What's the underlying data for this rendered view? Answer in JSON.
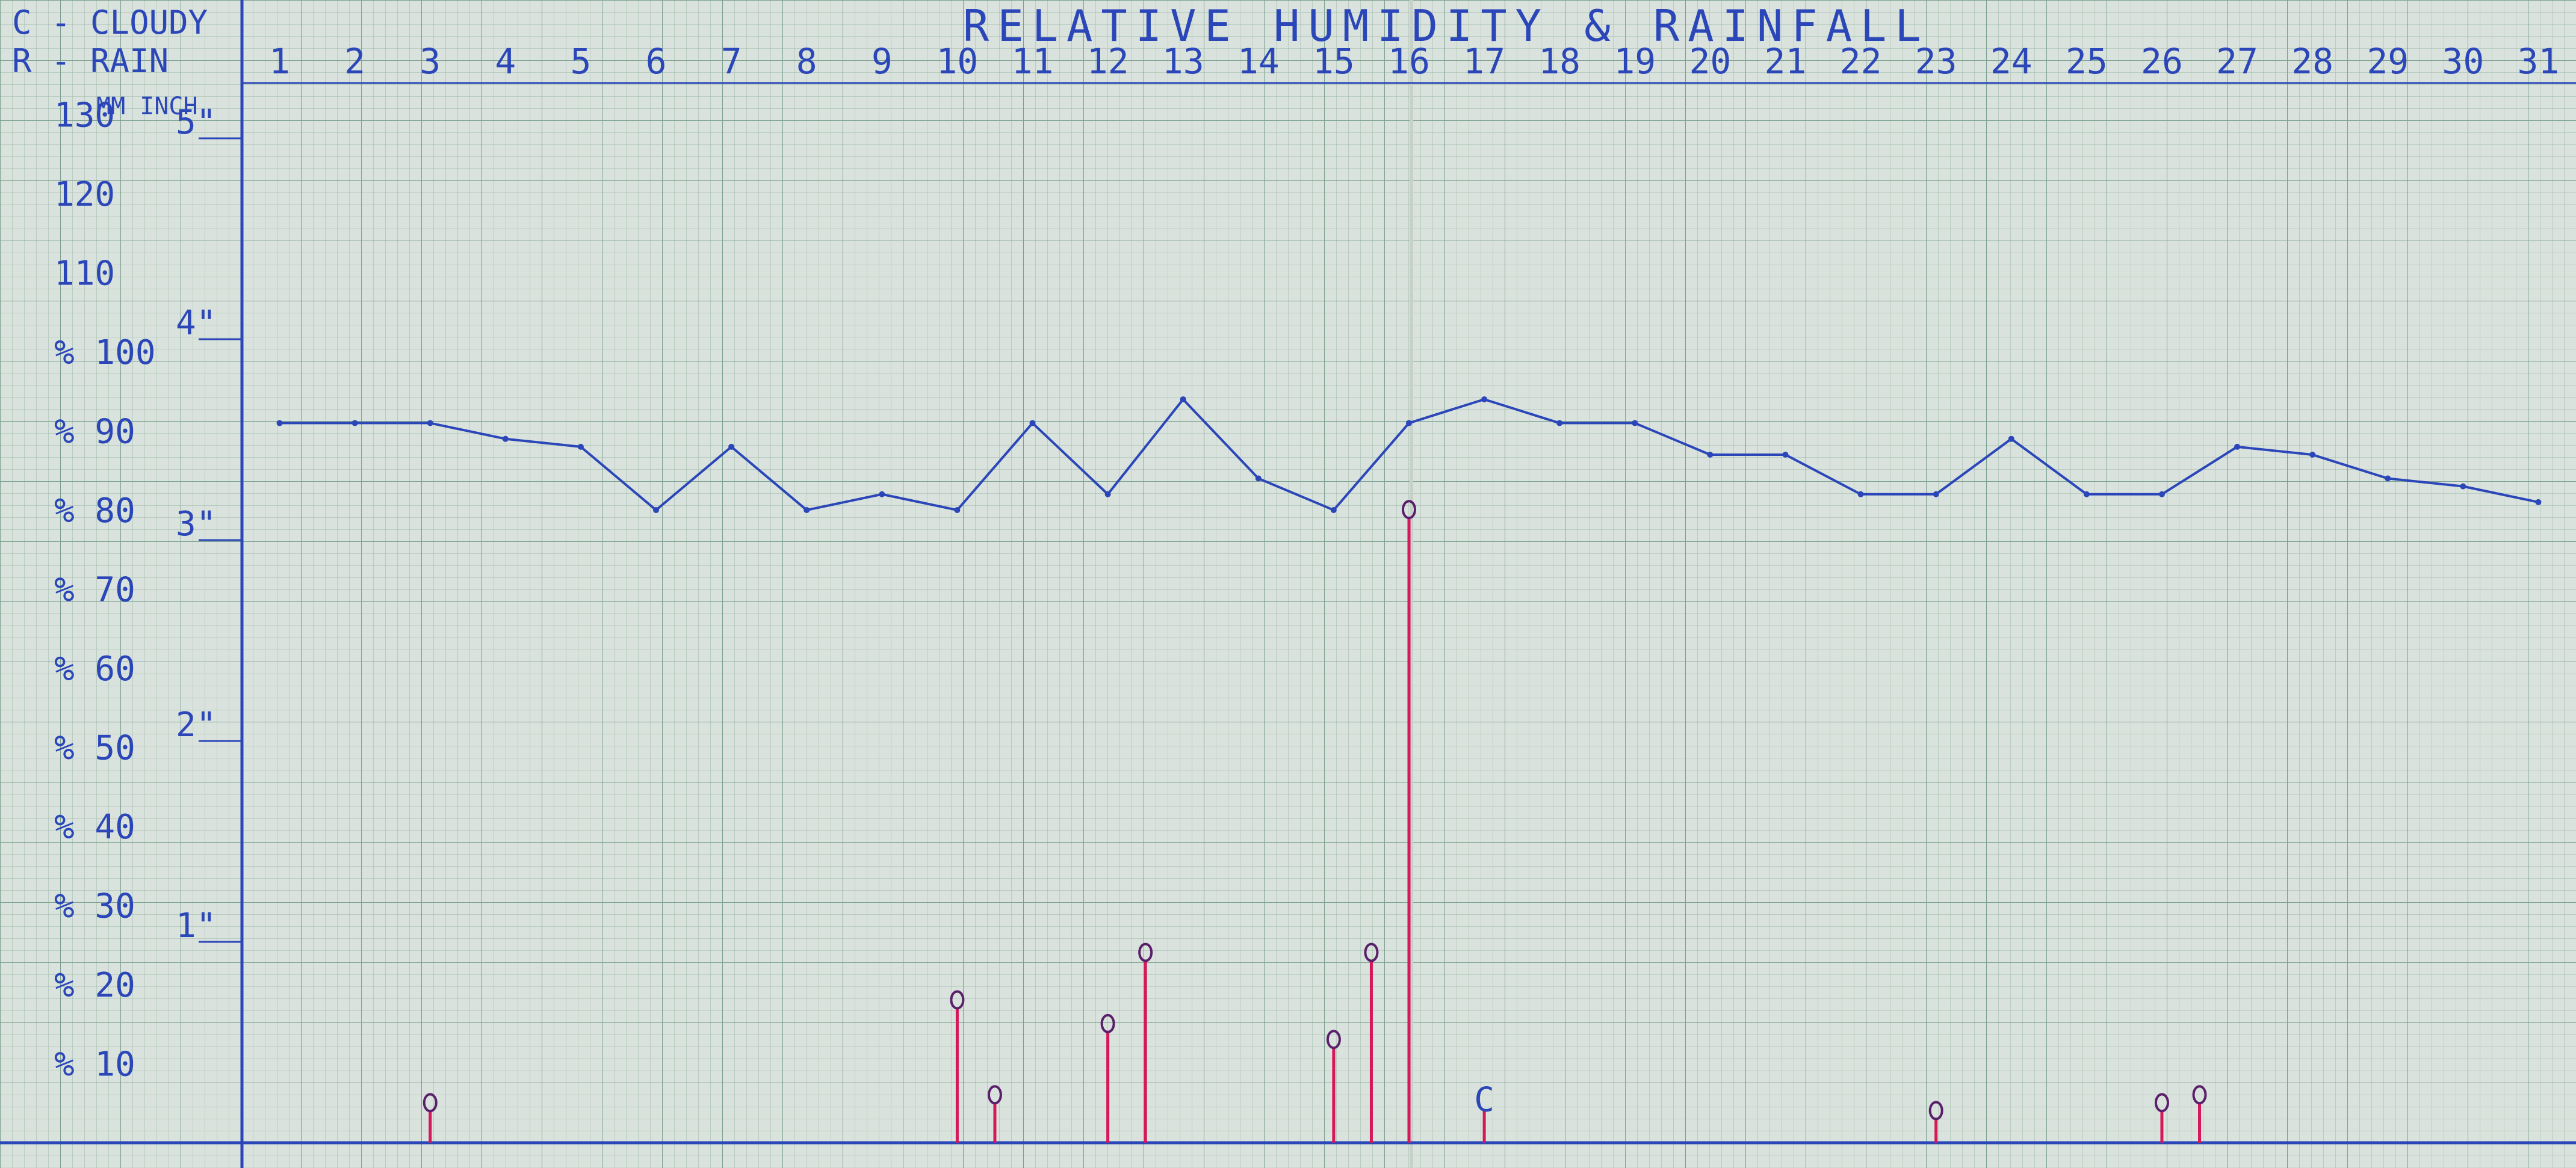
{
  "chart_data": {
    "type": "line",
    "title": "RELATIVE HUMIDITY & RAINFALL",
    "legend": [
      "C - CLOUDY",
      "R - RAIN"
    ],
    "units_header": "MM INCH",
    "x": [
      1,
      2,
      3,
      4,
      5,
      6,
      7,
      8,
      9,
      10,
      11,
      12,
      13,
      14,
      15,
      16,
      17,
      18,
      19,
      20,
      21,
      22,
      23,
      24,
      25,
      26,
      27,
      28,
      29,
      30,
      31
    ],
    "xlim": [
      0.5,
      31.5
    ],
    "ylim": [
      0,
      134
    ],
    "y_left_ticks": [
      "% 10",
      "% 20",
      "% 30",
      "% 40",
      "% 50",
      "% 60",
      "% 70",
      "% 80",
      "% 90",
      "% 100",
      "110",
      "120",
      "130"
    ],
    "y_left_tick_values": [
      10,
      20,
      30,
      40,
      50,
      60,
      70,
      80,
      90,
      100,
      110,
      120,
      130
    ],
    "y_inch_ticks": [
      "1\"",
      "2\"",
      "3\"",
      "4\"",
      "5\""
    ],
    "y_inch_tick_values": [
      25.4,
      50.8,
      76.2,
      101.6,
      127
    ],
    "series": [
      {
        "color": "#2b46b8",
        "x": [
          1,
          2,
          3,
          4,
          5,
          6,
          7,
          8,
          9,
          10,
          11,
          12,
          13,
          14,
          15,
          16,
          17,
          18,
          19,
          20,
          21,
          22,
          23,
          24,
          25,
          26,
          27,
          28,
          29,
          30,
          31
        ],
        "values": [
          91,
          91,
          91,
          89,
          88,
          80,
          88,
          80,
          82,
          80,
          91,
          82,
          94,
          84,
          80,
          91,
          94,
          91,
          91,
          87,
          87,
          82,
          82,
          89,
          82,
          82,
          88,
          87,
          84,
          83,
          81
        ]
      },
      {
        "color": "#d6185a",
        "type": "bar",
        "x": [
          3,
          10,
          10.5,
          12,
          12.5,
          15,
          15.5,
          16,
          17,
          23,
          26,
          26.5
        ],
        "values": [
          4,
          17,
          5,
          14,
          23,
          12,
          23,
          79,
          4,
          3,
          4,
          5
        ]
      }
    ],
    "markers": [
      {
        "x": 3,
        "label": "0"
      },
      {
        "x": 10,
        "label": "0"
      },
      {
        "x": 10.5,
        "label": "0"
      },
      {
        "x": 12,
        "label": "0"
      },
      {
        "x": 12.5,
        "label": "0"
      },
      {
        "x": 15,
        "label": "0"
      },
      {
        "x": 15.5,
        "label": "0"
      },
      {
        "x": 16,
        "label": "0"
      },
      {
        "x": 17,
        "label": "C"
      },
      {
        "x": 23,
        "label": "0"
      },
      {
        "x": 26,
        "label": "0"
      },
      {
        "x": 26.5,
        "label": "0"
      }
    ]
  }
}
